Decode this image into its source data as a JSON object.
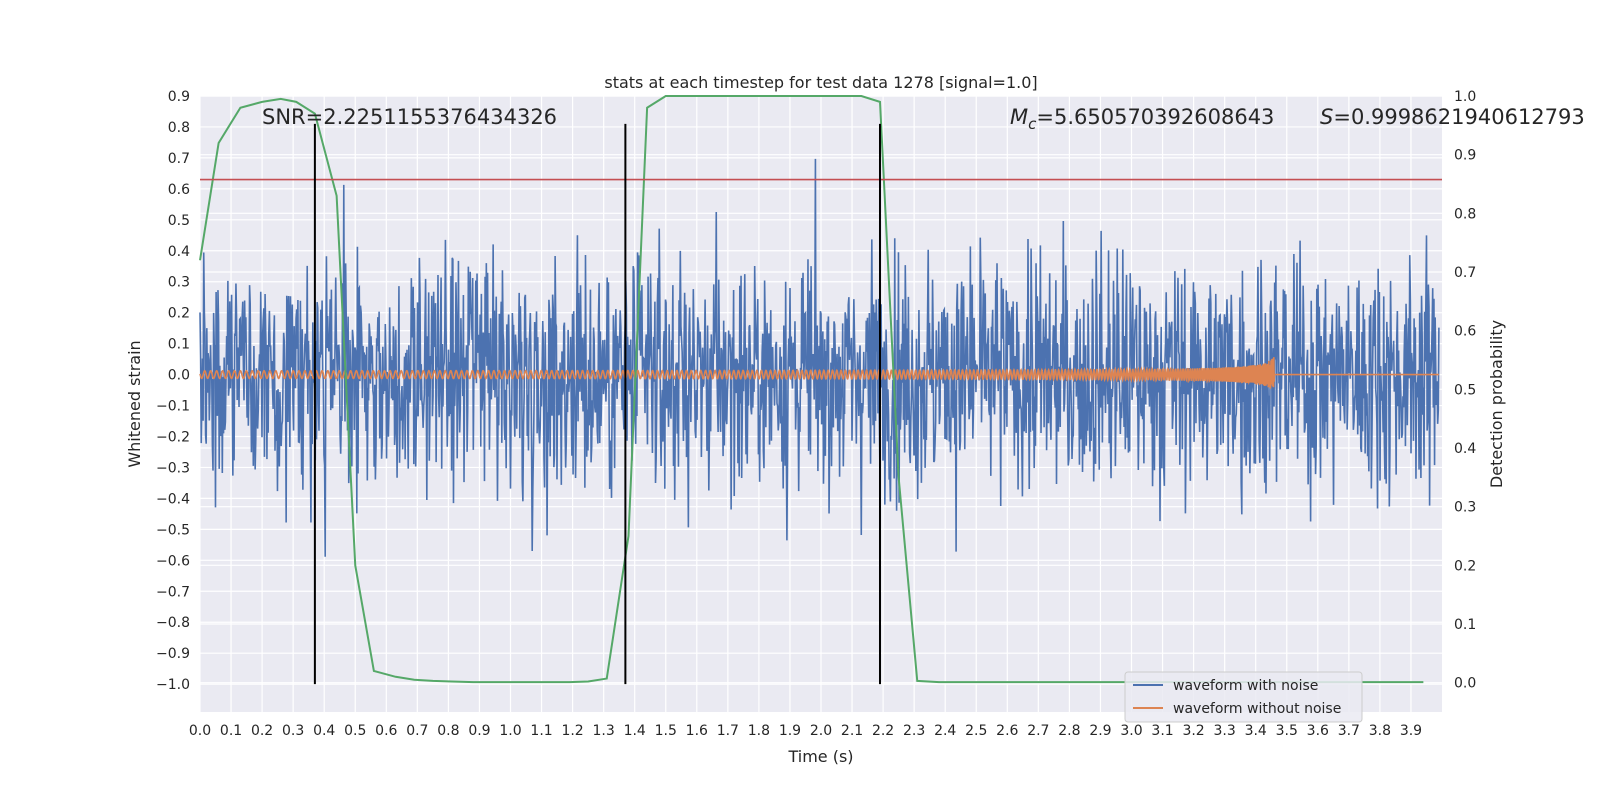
{
  "chart_data": {
    "type": "line",
    "title": "stats at each timestep for test data 1278 [signal=1.0]",
    "xlabel": "Time (s)",
    "ylabel": "Whitened strain",
    "y2label": "Detection probability",
    "xlim": [
      0.0,
      4.0
    ],
    "ylim": [
      -1.09,
      0.9
    ],
    "y2lim": [
      -0.05,
      1.0
    ],
    "xticks": [
      "0.0",
      "0.1",
      "0.2",
      "0.3",
      "0.4",
      "0.5",
      "0.6",
      "0.7",
      "0.8",
      "0.9",
      "1.0",
      "1.1",
      "1.2",
      "1.3",
      "1.4",
      "1.5",
      "1.6",
      "1.7",
      "1.8",
      "1.9",
      "2.0",
      "2.1",
      "2.2",
      "2.3",
      "2.4",
      "2.5",
      "2.6",
      "2.7",
      "2.8",
      "2.9",
      "3.0",
      "3.1",
      "3.2",
      "3.3",
      "3.4",
      "3.5",
      "3.6",
      "3.7",
      "3.8",
      "3.9"
    ],
    "yticks": [
      "0.9",
      "0.8",
      "0.7",
      "0.6",
      "0.5",
      "0.4",
      "0.3",
      "0.2",
      "0.1",
      "0.0",
      "−0.1",
      "−0.2",
      "−0.3",
      "−0.4",
      "−0.5",
      "−0.6",
      "−0.7",
      "−0.8",
      "−0.9",
      "−1.0"
    ],
    "y2ticks": [
      "1.0",
      "0.9",
      "0.8",
      "0.7",
      "0.6",
      "0.5",
      "0.4",
      "0.3",
      "0.2",
      "0.1",
      "0.0"
    ],
    "grid": true,
    "legend_position": "lower-right",
    "annotations": {
      "snr": "SNR=2.2251155376434326",
      "mc_symbol": "M",
      "mc_sub": "c",
      "mc_value": "=5.650570392608643",
      "s_symbol": "S",
      "s_value": "=0.9998621940612793"
    },
    "series": [
      {
        "name": "waveform with noise",
        "color": "#4c72b0",
        "description_stats": {
          "approx_amplitude_range": [
            -1.0,
            0.81
          ],
          "samples": 2000
        }
      },
      {
        "name": "waveform without noise",
        "color": "#dd8452",
        "description_stats": {
          "chirp_end_time": 3.46,
          "peak_amplitude": 0.06
        }
      },
      {
        "color": "#55a868",
        "axis": "right",
        "x": [
          0.0,
          0.06,
          0.13,
          0.2,
          0.26,
          0.31,
          0.37,
          0.44,
          0.5,
          0.56,
          0.63,
          0.69,
          0.75,
          0.81,
          0.88,
          0.94,
          1.0,
          1.06,
          1.13,
          1.19,
          1.25,
          1.31,
          1.38,
          1.44,
          1.5,
          1.56,
          1.63,
          1.69,
          1.75,
          1.81,
          1.88,
          1.94,
          2.0,
          2.06,
          2.13,
          2.19,
          2.25,
          2.31,
          2.38,
          2.44,
          2.5,
          2.56,
          2.63,
          2.69,
          2.75,
          2.81,
          2.88,
          2.94,
          3.0,
          3.06,
          3.13,
          3.19,
          3.25,
          3.31,
          3.38,
          3.44,
          3.5,
          3.56,
          3.63,
          3.69,
          3.75,
          3.81,
          3.88,
          3.94
        ],
        "values": [
          0.72,
          0.92,
          0.98,
          0.99,
          0.995,
          0.99,
          0.97,
          0.83,
          0.2,
          0.02,
          0.01,
          0.005,
          0.003,
          0.002,
          0.001,
          0.001,
          0.001,
          0.001,
          0.001,
          0.001,
          0.002,
          0.007,
          0.25,
          0.98,
          1.0,
          1.0,
          1.0,
          1.0,
          1.0,
          1.0,
          1.0,
          1.0,
          1.0,
          1.0,
          1.0,
          0.99,
          0.35,
          0.003,
          0.001,
          0.001,
          0.001,
          0.001,
          0.001,
          0.001,
          0.001,
          0.001,
          0.001,
          0.001,
          0.001,
          0.001,
          0.001,
          0.001,
          0.001,
          0.001,
          0.001,
          0.001,
          0.001,
          0.001,
          0.001,
          0.001,
          0.001,
          0.001,
          0.001,
          0.001
        ]
      }
    ],
    "threshold_line": {
      "y": 0.63,
      "color": "#c44e52"
    },
    "vertical_markers": [
      {
        "x": 0.37,
        "y_from": -1.0,
        "y_to": 0.81
      },
      {
        "x": 1.37,
        "y_from": -1.0,
        "y_to": 0.81
      },
      {
        "x": 2.19,
        "y_from": -1.0,
        "y_to": 0.81
      }
    ],
    "legend": [
      {
        "label": "waveform with noise",
        "color": "#4c72b0"
      },
      {
        "label": "waveform without noise",
        "color": "#dd8452"
      }
    ],
    "colors": {
      "plot_background": "#eaeaf2",
      "grid": "#ffffff",
      "marker": "#000000"
    }
  }
}
